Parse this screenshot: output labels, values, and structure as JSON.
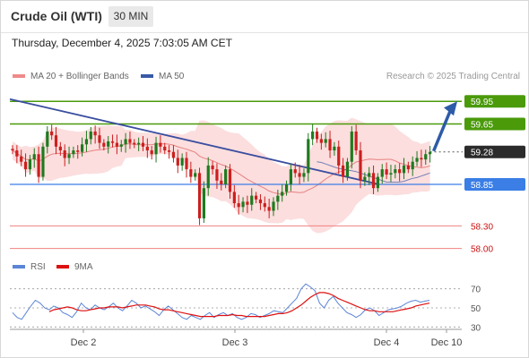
{
  "header": {
    "title": "Crude Oil (WTI)",
    "timeframe": "30 MIN"
  },
  "timestamp": "Thursday, December 4, 2025 7:03:05 AM CET",
  "legend": {
    "ma20_bb": "MA 20 + Bollinger Bands",
    "ma50": "MA 50"
  },
  "copyright": "Research © 2025 Trading Central",
  "rsi_legend": {
    "rsi": "RSI",
    "ma9": "9MA"
  },
  "colors": {
    "candle_up": "#1f7a1f",
    "candle_down": "#cc1f1f",
    "bollinger_fill": "#fbd3d3",
    "ma20": "#e88080",
    "ma50": "#3a5aa6",
    "resistance": "#4a9a0a",
    "support": "#3a7ee6",
    "target_line": "#f08080",
    "last_price_bg": "#2b2b2b",
    "arrow": "#2d5ba8",
    "rsi": "#5b85d6",
    "rsi_ma": "#dd1111"
  },
  "chart_data": [
    {
      "type": "candlestick",
      "title": "Crude Oil (WTI)",
      "timeframe": "30 MIN",
      "x_ticks": [
        "Dec 2",
        "Dec 3",
        "Dec 4",
        "Dec 10"
      ],
      "ylim": [
        57.9,
        60.1
      ],
      "price_levels": [
        {
          "value": "59.95",
          "kind": "resistance"
        },
        {
          "value": "59.65",
          "kind": "resistance"
        },
        {
          "value": "59.28",
          "kind": "last"
        },
        {
          "value": "58.85",
          "kind": "support"
        },
        {
          "value": "58.30",
          "kind": "target"
        },
        {
          "value": "58.00",
          "kind": "target"
        }
      ],
      "close": [
        59.3,
        59.22,
        59.15,
        59.05,
        59.18,
        59.25,
        58.95,
        59.35,
        59.55,
        59.5,
        59.35,
        59.3,
        59.2,
        59.25,
        59.3,
        59.28,
        59.38,
        59.45,
        59.55,
        59.5,
        59.4,
        59.35,
        59.42,
        59.4,
        59.35,
        59.38,
        59.45,
        59.4,
        59.38,
        59.4,
        59.35,
        59.3,
        59.25,
        59.4,
        59.35,
        59.3,
        59.28,
        59.2,
        59.1,
        59.2,
        59.05,
        58.95,
        59.0,
        58.4,
        58.8,
        59.1,
        59.05,
        58.9,
        58.85,
        59.05,
        58.75,
        58.6,
        58.55,
        58.62,
        58.58,
        58.7,
        58.65,
        58.6,
        58.55,
        58.5,
        58.62,
        58.7,
        58.75,
        58.85,
        59.05,
        59.0,
        58.95,
        59.0,
        59.45,
        59.55,
        59.45,
        59.4,
        59.45,
        59.3,
        59.35,
        59.1,
        58.95,
        59.15,
        59.55,
        59.3,
        58.9,
        58.95,
        59.0,
        58.8,
        58.95,
        59.05,
        58.98,
        59.0,
        59.05,
        59.0,
        59.1,
        59.05,
        59.15,
        59.2,
        59.18,
        59.25,
        59.28
      ],
      "ma50": [
        59.15,
        59.14,
        59.12,
        59.1,
        59.08,
        59.06,
        59.05,
        59.04,
        59.03,
        59.02,
        59.0,
        58.98,
        58.96,
        58.94,
        58.92,
        58.9,
        58.88,
        58.88,
        58.88,
        58.88,
        58.89,
        58.91,
        58.93,
        58.94,
        58.96,
        58.98,
        59.0
      ],
      "ma50_start_index": 70,
      "trendline": {
        "from": 59.98,
        "to": 58.85
      },
      "target_arrow": {
        "from": "59.28",
        "to": "59.95"
      }
    },
    {
      "type": "line",
      "title": "RSI",
      "ylim": [
        20,
        80
      ],
      "y_ticks": [
        "70",
        "50",
        "30"
      ],
      "series": [
        {
          "name": "RSI",
          "values": [
            45,
            40,
            38,
            45,
            52,
            58,
            55,
            50,
            48,
            52,
            50,
            45,
            43,
            40,
            46,
            55,
            50,
            48,
            53,
            50,
            48,
            51,
            55,
            50,
            47,
            52,
            58,
            55,
            50,
            52,
            49,
            46,
            42,
            48,
            52,
            48,
            44,
            40,
            38,
            42,
            40,
            38,
            42,
            45,
            40,
            43,
            45,
            42,
            44,
            40,
            38,
            40,
            44,
            43,
            40,
            42,
            44,
            47,
            46,
            45,
            50,
            55,
            60,
            70,
            75,
            72,
            68,
            55,
            50,
            58,
            62,
            55,
            50,
            45,
            43,
            40,
            43,
            48,
            50,
            47,
            42,
            45,
            48,
            49,
            50,
            52,
            55,
            57,
            58,
            56,
            57,
            58
          ]
        },
        {
          "name": "9MA",
          "values": [
            null,
            null,
            null,
            null,
            null,
            null,
            null,
            null,
            46,
            48,
            49,
            50,
            51,
            50,
            48,
            47,
            47,
            48,
            49,
            50,
            50,
            51,
            51,
            51,
            50,
            51,
            52,
            53,
            53,
            53,
            52,
            51,
            49,
            48,
            48,
            47,
            46,
            45,
            44,
            43,
            42,
            41,
            41,
            41,
            41,
            42,
            42,
            42,
            43,
            42,
            42,
            41,
            41,
            41,
            41,
            41,
            42,
            43,
            44,
            44,
            45,
            47,
            50,
            53,
            57,
            61,
            64,
            66,
            66,
            65,
            63,
            60,
            58,
            56,
            54,
            52,
            50,
            48,
            47,
            47,
            46,
            46,
            46,
            46,
            47,
            48,
            49,
            50,
            52,
            53,
            54,
            55
          ]
        }
      ]
    }
  ]
}
